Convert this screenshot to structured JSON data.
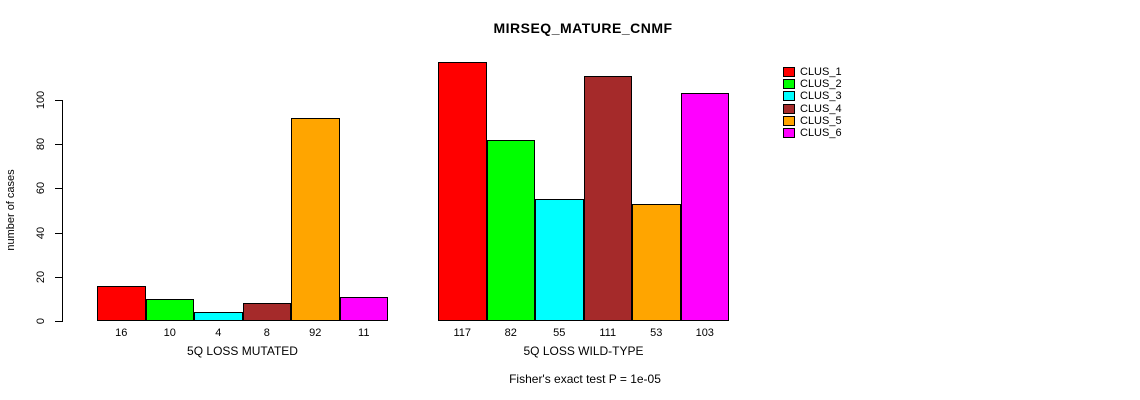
{
  "title": "MIRSEQ_MATURE_CNMF",
  "footer": {
    "note": "Fisher's exact test P = 1e-05"
  },
  "chart_data": {
    "type": "bar",
    "title": "MIRSEQ_MATURE_CNMF",
    "xlabel": "",
    "ylabel": "number of cases",
    "ylim": [
      0,
      100
    ],
    "yticks": [
      0,
      20,
      40,
      60,
      80,
      100
    ],
    "grid": false,
    "legend_position": "right",
    "categories": [
      "5Q LOSS MUTATED",
      "5Q LOSS WILD-TYPE"
    ],
    "series": [
      {
        "name": "CLUS_1",
        "color": "#ff0000",
        "values": [
          16,
          117
        ]
      },
      {
        "name": "CLUS_2",
        "color": "#00ff00",
        "values": [
          10,
          82
        ]
      },
      {
        "name": "CLUS_3",
        "color": "#00ffff",
        "values": [
          4,
          55
        ]
      },
      {
        "name": "CLUS_4",
        "color": "#a52a2a",
        "values": [
          8,
          111
        ]
      },
      {
        "name": "CLUS_5",
        "color": "#ffa500",
        "values": [
          92,
          53
        ]
      },
      {
        "name": "CLUS_6",
        "color": "#ff00ff",
        "values": [
          11,
          103
        ]
      }
    ],
    "bar_value_labels": {
      "5Q LOSS MUTATED": [
        16,
        10,
        4,
        8,
        92,
        11
      ],
      "5Q LOSS WILD-TYPE": [
        117,
        82,
        55,
        111,
        53,
        103
      ]
    },
    "annotation": "Fisher's exact test P = 1e-05"
  }
}
